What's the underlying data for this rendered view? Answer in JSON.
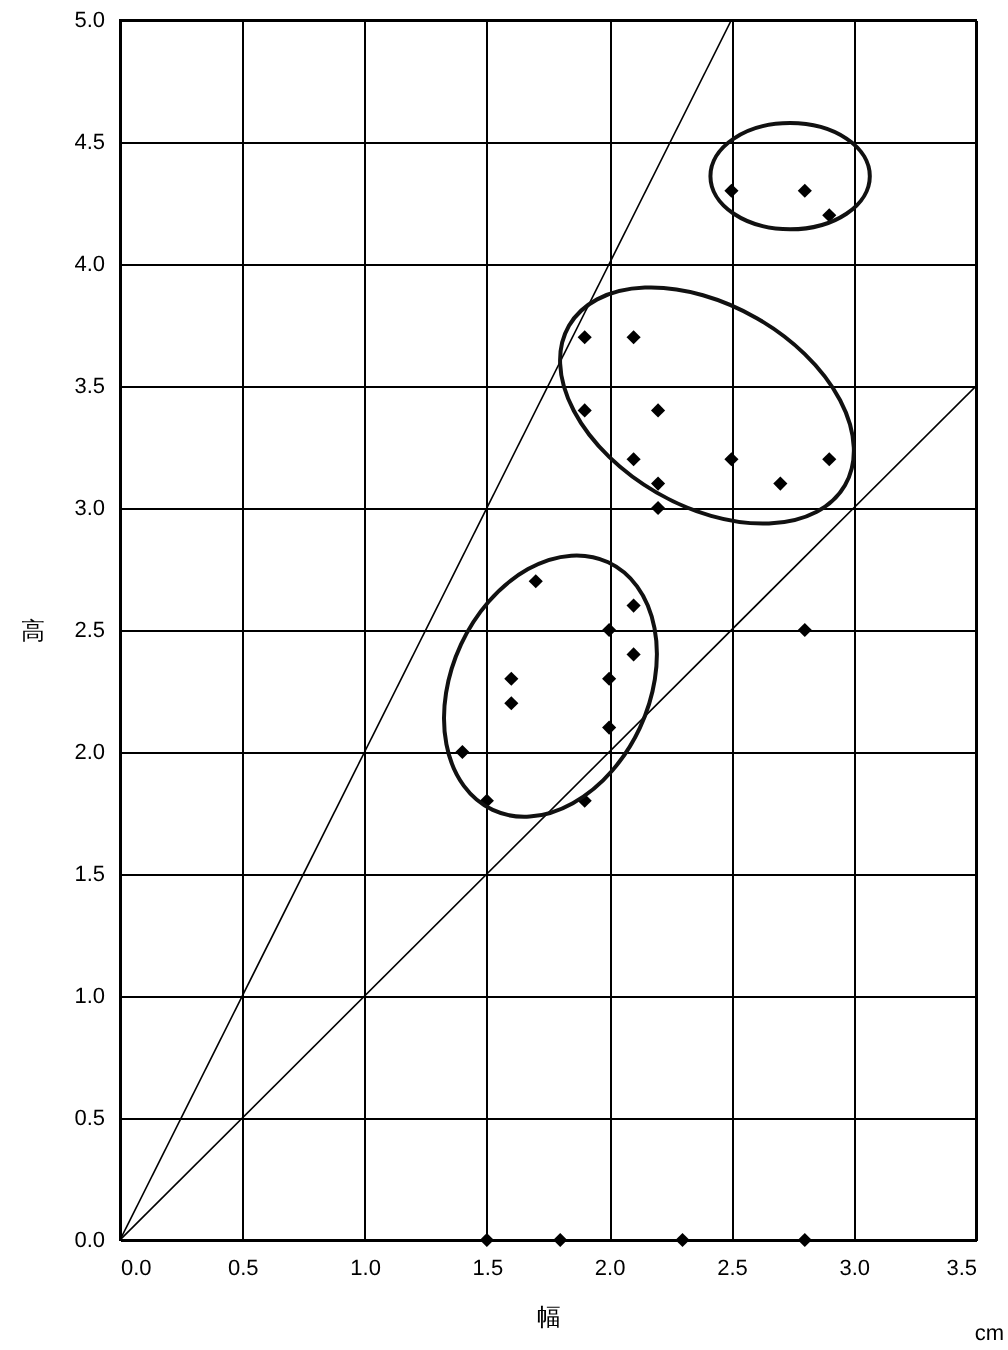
{
  "chart_data": {
    "type": "scatter",
    "xlabel": "幅",
    "ylabel": "高",
    "annotations": [
      "cm"
    ],
    "xlim": [
      0,
      3.5
    ],
    "ylim": [
      0,
      5
    ],
    "xticks": [
      {
        "value": 0,
        "label": "0.0"
      },
      {
        "value": 0.5,
        "label": "0.5"
      },
      {
        "value": 1,
        "label": "1.0"
      },
      {
        "value": 1.5,
        "label": "1.5"
      },
      {
        "value": 2,
        "label": "2.0"
      },
      {
        "value": 2.5,
        "label": "2.5"
      },
      {
        "value": 3,
        "label": "3.0"
      },
      {
        "value": 3.5,
        "label": "3.5"
      }
    ],
    "yticks": [
      {
        "value": 0,
        "label": "0.0"
      },
      {
        "value": 0.5,
        "label": "0.5"
      },
      {
        "value": 1,
        "label": "1.0"
      },
      {
        "value": 1.5,
        "label": "1.5"
      },
      {
        "value": 2,
        "label": "2.0"
      },
      {
        "value": 2.5,
        "label": "2.5"
      },
      {
        "value": 3,
        "label": "3.0"
      },
      {
        "value": 3.5,
        "label": "3.5"
      },
      {
        "value": 4,
        "label": "4.0"
      },
      {
        "value": 4.5,
        "label": "4.5"
      },
      {
        "value": 5,
        "label": "5.0"
      }
    ],
    "grid": true,
    "marker": "diamond",
    "series": [
      {
        "color": "#000000",
        "x": [
          2.5,
          2.8,
          2.9,
          1.9,
          2.1,
          1.9,
          2.2,
          2.1,
          2.5,
          2.9,
          2.2,
          2.7,
          2.2,
          1.7,
          2.1,
          2.0,
          2.8,
          2.1,
          1.6,
          2.0,
          1.6,
          2.0,
          1.4,
          1.5,
          1.9,
          1.5,
          1.8,
          2.3,
          2.8
        ],
        "values": [
          4.3,
          4.3,
          4.2,
          3.7,
          3.7,
          3.4,
          3.4,
          3.2,
          3.2,
          3.2,
          3.1,
          3.1,
          3.0,
          2.7,
          2.6,
          2.5,
          2.5,
          2.4,
          2.3,
          2.3,
          2.2,
          2.1,
          2.0,
          1.8,
          1.8,
          0,
          0,
          0,
          0
        ]
      },
      {
        "type": "line",
        "marker": "none",
        "color": "#000000",
        "x": [
          0,
          2.5
        ],
        "values": [
          0,
          5
        ]
      },
      {
        "type": "line",
        "marker": "none",
        "color": "#000000",
        "x": [
          0,
          3.5
        ],
        "values": [
          0,
          3.5
        ]
      }
    ]
  }
}
